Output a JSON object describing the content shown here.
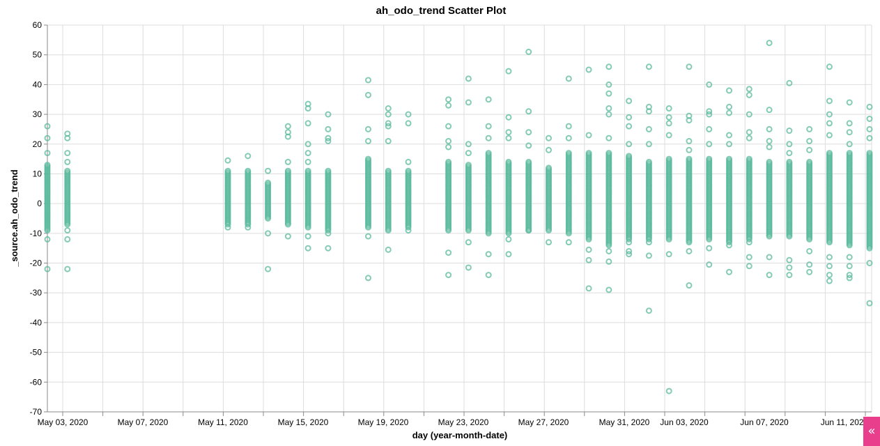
{
  "chart_data": {
    "type": "scatter",
    "title": "ah_odo_trend Scatter Plot",
    "xlabel": "day (year-month-date)",
    "ylabel": "_source.ah_odo_trend",
    "x_ticks": [
      "May 03, 2020",
      "May 07, 2020",
      "May 11, 2020",
      "May 15, 2020",
      "May 19, 2020",
      "May 23, 2020",
      "May 27, 2020",
      "May 31, 2020",
      "Jun 03, 2020",
      "Jun 07, 2020",
      "Jun 11, 2020"
    ],
    "y_ticks": [
      60,
      50,
      40,
      30,
      20,
      10,
      0,
      -10,
      -20,
      -30,
      -40,
      -50,
      -60,
      -70
    ],
    "xlim": [
      "2020-05-01",
      "2020-06-12"
    ],
    "ylim": [
      -70,
      60
    ],
    "grid": true,
    "color": "#5ab99c",
    "series": [
      {
        "points": [
          {
            "x": "2020-05-02",
            "y_range": [
              -9,
              13
            ],
            "outliers": [
              26,
              22,
              17,
              -12,
              -22
            ]
          },
          {
            "x": "2020-05-03",
            "y_range": [
              -7,
              11
            ],
            "outliers": [
              23.5,
              22,
              17,
              14,
              -9,
              -12,
              -22
            ]
          },
          {
            "x": "2020-05-11",
            "y_range": [
              -7,
              11
            ],
            "outliers": [
              14.5,
              -8
            ]
          },
          {
            "x": "2020-05-12",
            "y_range": [
              -7,
              11
            ],
            "outliers": [
              16,
              -8
            ]
          },
          {
            "x": "2020-05-13",
            "y_range": [
              -5,
              7
            ],
            "outliers": [
              11,
              -10,
              -22
            ]
          },
          {
            "x": "2020-05-14",
            "y_range": [
              -7,
              11
            ],
            "outliers": [
              26,
              24,
              22.5,
              14,
              -11
            ]
          },
          {
            "x": "2020-05-15",
            "y_range": [
              -8,
              11
            ],
            "outliers": [
              33.5,
              32,
              27,
              20,
              17,
              14,
              -11,
              -15
            ]
          },
          {
            "x": "2020-05-16",
            "y_range": [
              -9,
              11
            ],
            "outliers": [
              30,
              25,
              22,
              21,
              -10,
              -15
            ]
          },
          {
            "x": "2020-05-18",
            "y_range": [
              -8,
              15
            ],
            "outliers": [
              41.5,
              36.5,
              25,
              21,
              -11,
              -25
            ]
          },
          {
            "x": "2020-05-19",
            "y_range": [
              -9,
              11
            ],
            "outliers": [
              32,
              30,
              27,
              26,
              21,
              -15.5
            ]
          },
          {
            "x": "2020-05-20",
            "y_range": [
              -8,
              11
            ],
            "outliers": [
              30,
              27,
              14,
              -9
            ]
          },
          {
            "x": "2020-05-22",
            "y_range": [
              -9,
              14
            ],
            "outliers": [
              35,
              33,
              26,
              21,
              19,
              -16.5,
              -24
            ]
          },
          {
            "x": "2020-05-23",
            "y_range": [
              -9,
              13
            ],
            "outliers": [
              42,
              34,
              20,
              17,
              -13,
              -21.5
            ]
          },
          {
            "x": "2020-05-24",
            "y_range": [
              -10,
              17
            ],
            "outliers": [
              35,
              26,
              22,
              -17,
              -24
            ]
          },
          {
            "x": "2020-05-25",
            "y_range": [
              -10,
              14
            ],
            "outliers": [
              44.5,
              29,
              24,
              22,
              -12,
              -17
            ]
          },
          {
            "x": "2020-05-26",
            "y_range": [
              -9,
              14
            ],
            "outliers": [
              51,
              31,
              24,
              19.5,
              -9
            ]
          },
          {
            "x": "2020-05-27",
            "y_range": [
              -9,
              12
            ],
            "outliers": [
              22,
              18,
              -13
            ]
          },
          {
            "x": "2020-05-28",
            "y_range": [
              -10,
              17
            ],
            "outliers": [
              42,
              26,
              22,
              -13
            ]
          },
          {
            "x": "2020-05-29",
            "y_range": [
              -12,
              17
            ],
            "outliers": [
              45,
              23,
              -15.5,
              -19,
              -28.5
            ]
          },
          {
            "x": "2020-05-30",
            "y_range": [
              -14,
              17
            ],
            "outliers": [
              46,
              40,
              37,
              32,
              30,
              22,
              -16,
              -19.5,
              -29
            ]
          },
          {
            "x": "2020-05-31",
            "y_range": [
              -12,
              16
            ],
            "outliers": [
              34.5,
              29,
              26,
              20,
              -13,
              -16,
              -17
            ]
          },
          {
            "x": "2020-06-01",
            "y_range": [
              -12,
              14
            ],
            "outliers": [
              46,
              32.5,
              31,
              25,
              20,
              -13,
              -17.5,
              -36
            ]
          },
          {
            "x": "2020-06-02",
            "y_range": [
              -12,
              15
            ],
            "outliers": [
              32,
              29,
              27,
              23,
              -17,
              -63
            ]
          },
          {
            "x": "2020-06-03",
            "y_range": [
              -13,
              15
            ],
            "outliers": [
              46,
              29.5,
              28,
              21,
              18,
              -16,
              -27.5
            ]
          },
          {
            "x": "2020-06-04",
            "y_range": [
              -12,
              15
            ],
            "outliers": [
              40,
              31,
              30,
              25,
              20,
              -15,
              -20.5
            ]
          },
          {
            "x": "2020-06-05",
            "y_range": [
              -13,
              15
            ],
            "outliers": [
              38,
              32.5,
              30.5,
              23,
              20,
              -14,
              -23
            ]
          },
          {
            "x": "2020-06-06",
            "y_range": [
              -12,
              15
            ],
            "outliers": [
              38.5,
              36.5,
              30,
              24,
              22,
              -13,
              -18,
              -21
            ]
          },
          {
            "x": "2020-06-07",
            "y_range": [
              -11,
              14
            ],
            "outliers": [
              54,
              31.5,
              25,
              21,
              19,
              -18,
              -24
            ]
          },
          {
            "x": "2020-06-08",
            "y_range": [
              -11,
              14
            ],
            "outliers": [
              40.5,
              24.5,
              20,
              17,
              -19,
              -21.5,
              -24
            ]
          },
          {
            "x": "2020-06-09",
            "y_range": [
              -12,
              14
            ],
            "outliers": [
              25,
              21,
              18,
              -16,
              -20.5,
              -23
            ]
          },
          {
            "x": "2020-06-10",
            "y_range": [
              -13,
              17
            ],
            "outliers": [
              46,
              34.5,
              30,
              27,
              23,
              -18,
              -21,
              -24,
              -26
            ]
          },
          {
            "x": "2020-06-11",
            "y_range": [
              -14,
              17
            ],
            "outliers": [
              34,
              27,
              24,
              20,
              -18,
              -21,
              -24,
              -25
            ]
          },
          {
            "x": "2020-06-12",
            "y_range": [
              -15,
              17
            ],
            "outliers": [
              32.5,
              28.5,
              25,
              22,
              -20,
              -33.5
            ]
          }
        ]
      }
    ]
  },
  "ui": {
    "collapse_icon": "double-chevron-left-icon",
    "collapse_glyph": "«"
  }
}
